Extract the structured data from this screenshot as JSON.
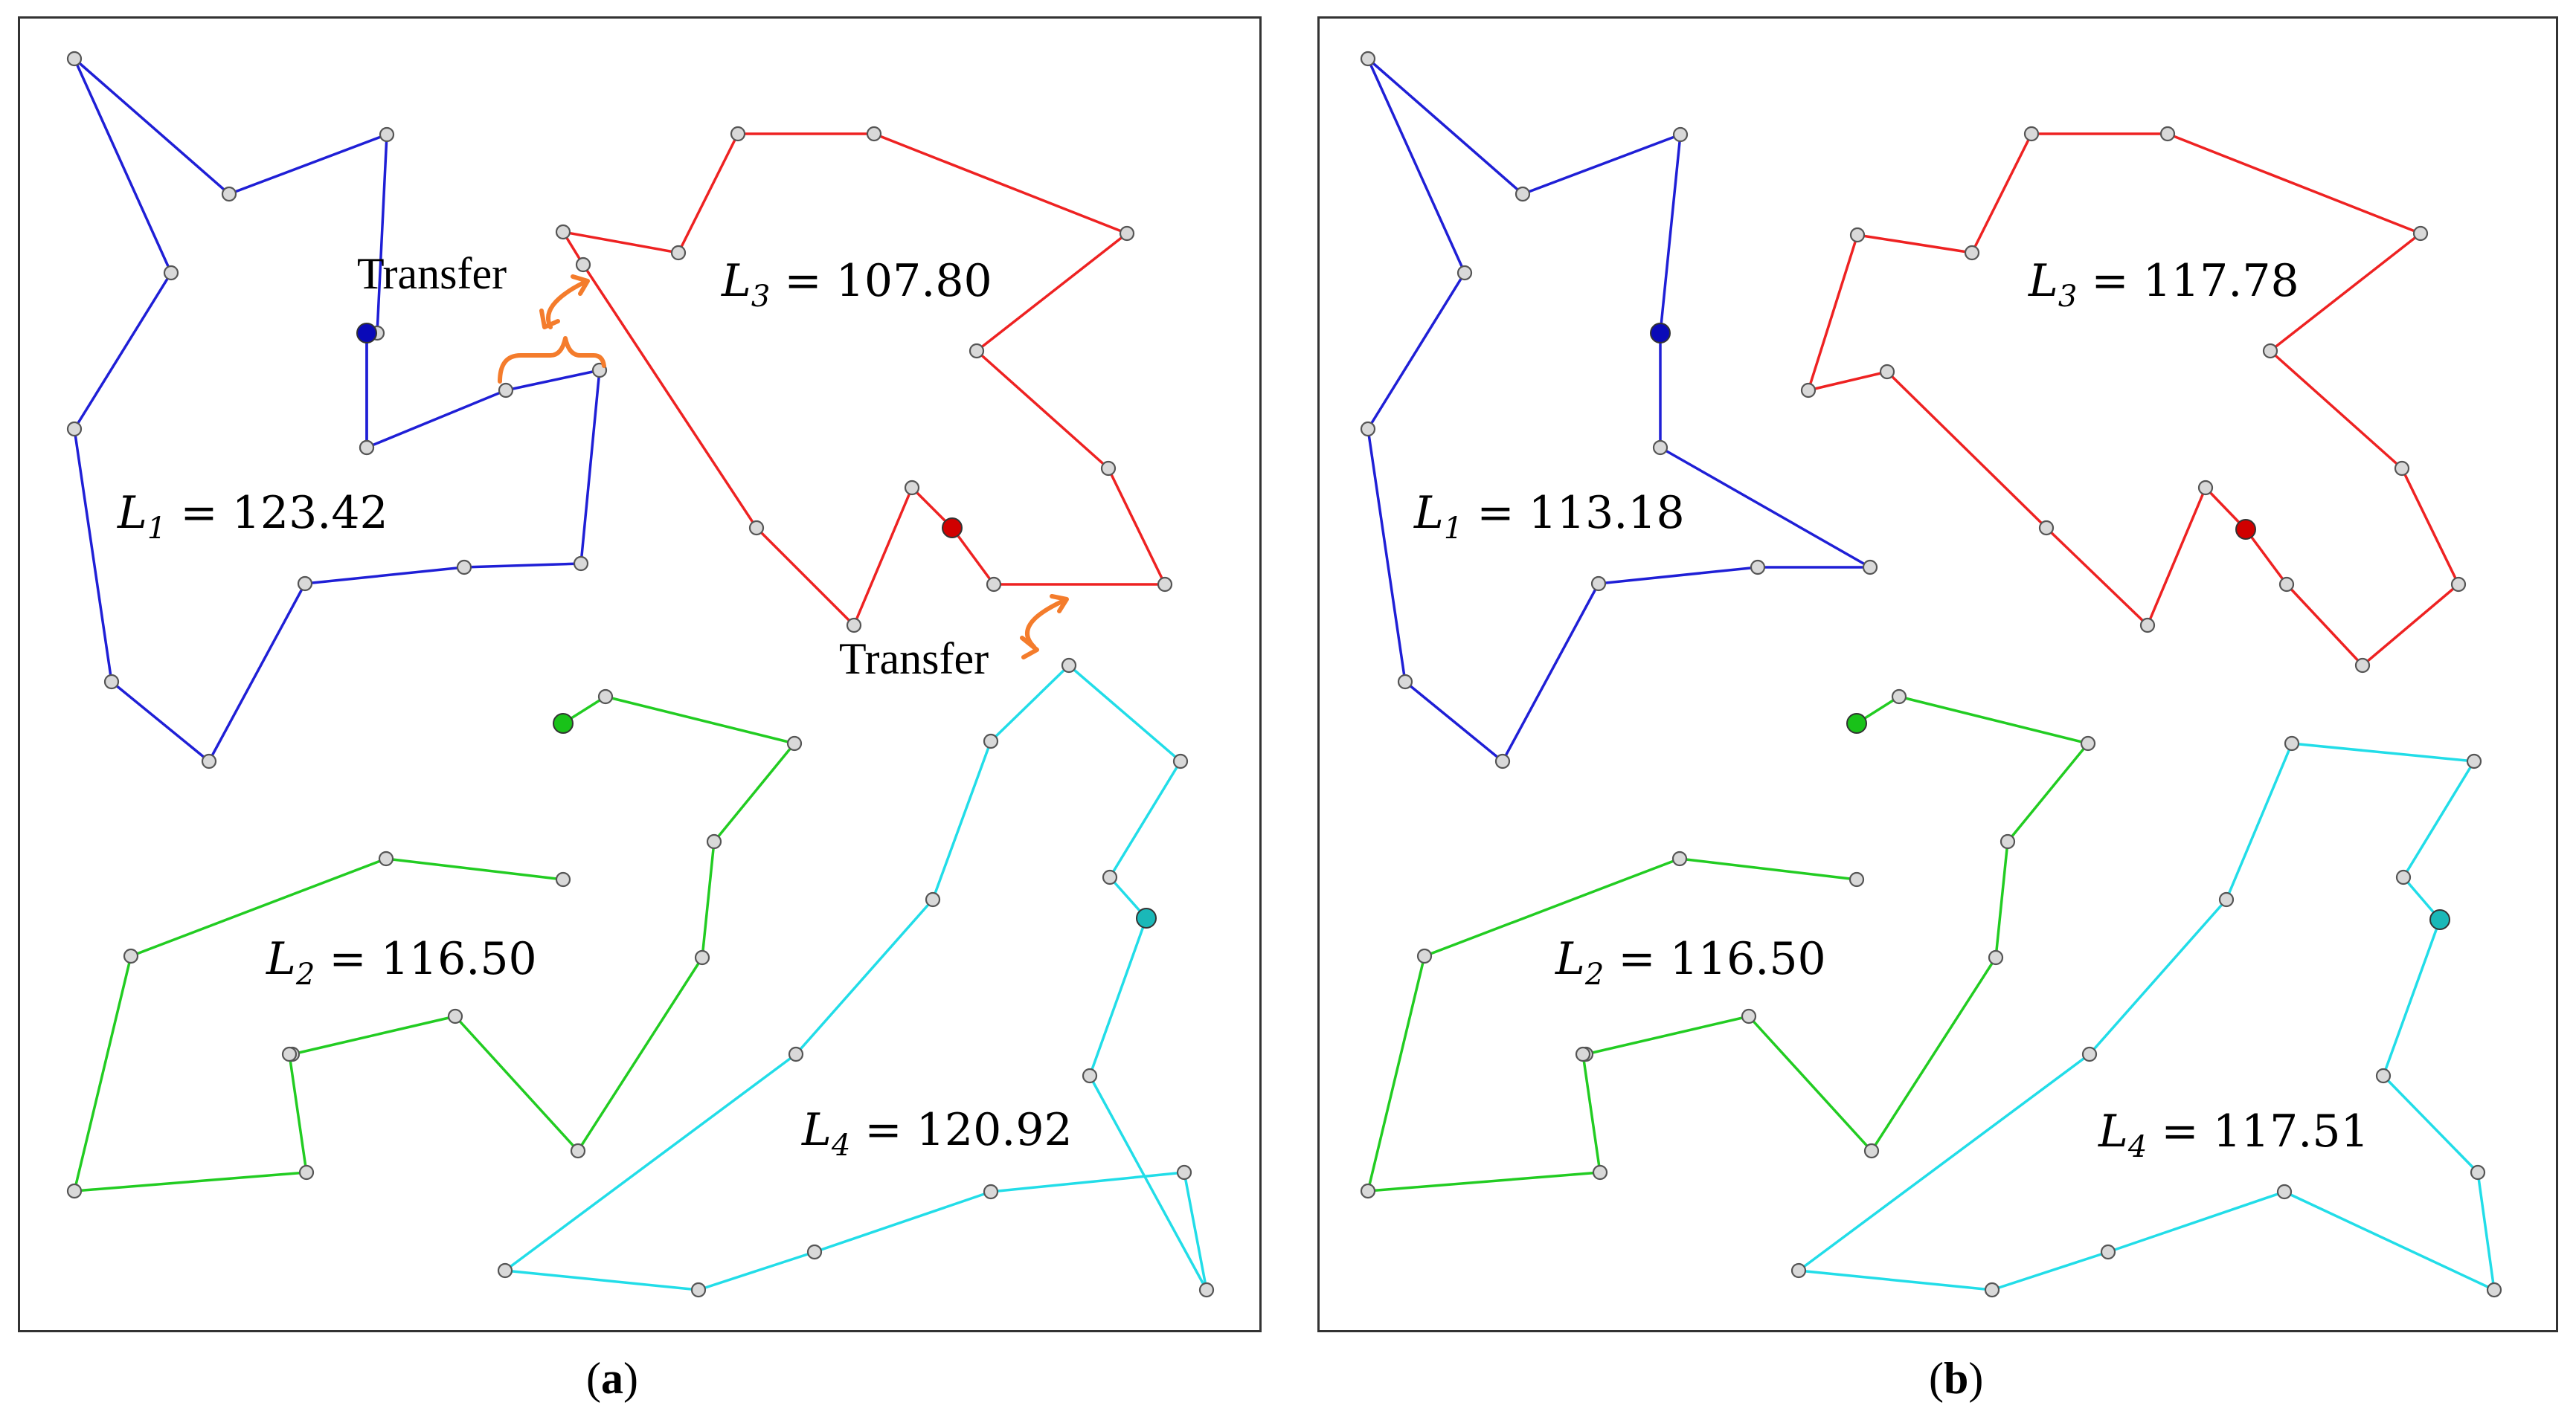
{
  "colors": {
    "route_1": "#1f1fd6",
    "route_2": "#22cc22",
    "route_3": "#ee2222",
    "route_4": "#22dde8",
    "node_fill": "#d9d9d9",
    "node_stroke": "#555555",
    "depot_1": "#0a0ab8",
    "depot_2": "#19c219",
    "depot_3": "#d00000",
    "depot_4": "#1ab8b8",
    "transfer_arrow": "#f47c2c"
  },
  "panels": [
    {
      "caption_letter": "a",
      "routes": [
        {
          "symbol": "L",
          "index": "1",
          "eq": "=",
          "length": "123.42"
        },
        {
          "symbol": "L",
          "index": "2",
          "eq": "=",
          "length": "116.50"
        },
        {
          "symbol": "L",
          "index": "3",
          "eq": "=",
          "length": "107.80"
        },
        {
          "symbol": "L",
          "index": "4",
          "eq": "=",
          "length": "120.92"
        }
      ],
      "annotations": [
        "Transfer",
        "Transfer"
      ]
    },
    {
      "caption_letter": "b",
      "routes": [
        {
          "symbol": "L",
          "index": "1",
          "eq": "=",
          "length": "113.18"
        },
        {
          "symbol": "L",
          "index": "2",
          "eq": "=",
          "length": "116.50"
        },
        {
          "symbol": "L",
          "index": "3",
          "eq": "=",
          "length": "117.78"
        },
        {
          "symbol": "L",
          "index": "4",
          "eq": "=",
          "length": "117.51"
        }
      ],
      "annotations": []
    }
  ]
}
